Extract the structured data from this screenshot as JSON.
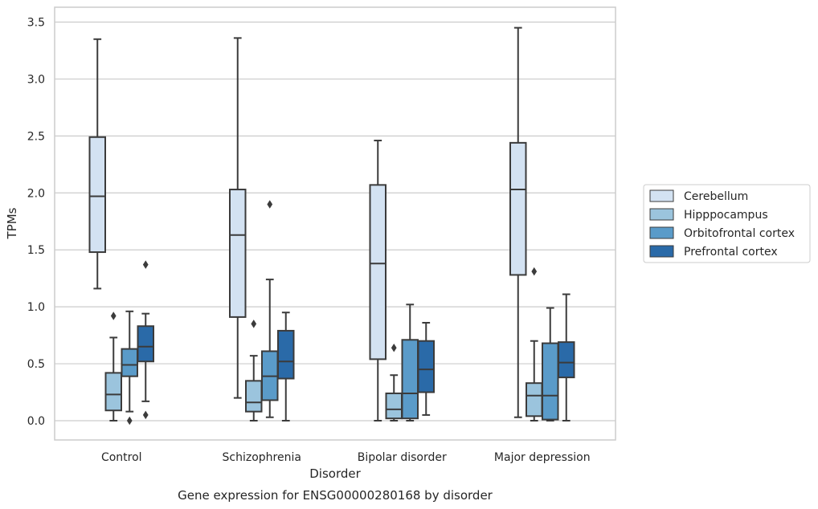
{
  "chart_data": {
    "type": "boxplot",
    "caption": "Gene expression for ENSG00000280168 by disorder",
    "xlabel": "Disorder",
    "ylabel": "TPMs",
    "ylim": [
      -0.17,
      3.62
    ],
    "yticks": [
      0.0,
      0.5,
      1.0,
      1.5,
      2.0,
      2.5,
      3.0,
      3.5
    ],
    "ytick_labels": [
      "0.0",
      "0.5",
      "1.0",
      "1.5",
      "2.0",
      "2.5",
      "3.0",
      "3.5"
    ],
    "grid": "horizontal",
    "legend_position": "right",
    "categories": [
      "Control",
      "Schizophrenia",
      "Bipolar disorder",
      "Major depression"
    ],
    "series": [
      {
        "name": "Cerebellum",
        "color": "#d3e2f2",
        "boxes": [
          {
            "whislo": 1.16,
            "q1": 1.48,
            "med": 1.97,
            "q3": 2.49,
            "whishi": 3.35,
            "fliers": []
          },
          {
            "whislo": 0.2,
            "q1": 0.91,
            "med": 1.63,
            "q3": 2.03,
            "whishi": 3.36,
            "fliers": []
          },
          {
            "whislo": 0.0,
            "q1": 0.54,
            "med": 1.38,
            "q3": 2.07,
            "whishi": 2.46,
            "fliers": []
          },
          {
            "whislo": 0.03,
            "q1": 1.28,
            "med": 2.03,
            "q3": 2.44,
            "whishi": 3.45,
            "fliers": []
          }
        ]
      },
      {
        "name": "Hipppocampus",
        "color": "#9bc4dd",
        "boxes": [
          {
            "whislo": 0.0,
            "q1": 0.09,
            "med": 0.23,
            "q3": 0.42,
            "whishi": 0.73,
            "fliers": [
              0.92
            ]
          },
          {
            "whislo": 0.0,
            "q1": 0.08,
            "med": 0.16,
            "q3": 0.35,
            "whishi": 0.57,
            "fliers": [
              0.85
            ]
          },
          {
            "whislo": 0.0,
            "q1": 0.02,
            "med": 0.1,
            "q3": 0.24,
            "whishi": 0.4,
            "fliers": [
              0.64
            ]
          },
          {
            "whislo": 0.0,
            "q1": 0.04,
            "med": 0.22,
            "q3": 0.33,
            "whishi": 0.7,
            "fliers": [
              1.31
            ]
          }
        ]
      },
      {
        "name": "Orbitofrontal cortex",
        "color": "#5a9bc9",
        "boxes": [
          {
            "whislo": 0.08,
            "q1": 0.39,
            "med": 0.49,
            "q3": 0.63,
            "whishi": 0.96,
            "fliers": [
              0.0
            ]
          },
          {
            "whislo": 0.03,
            "q1": 0.18,
            "med": 0.39,
            "q3": 0.61,
            "whishi": 1.24,
            "fliers": [
              1.9
            ]
          },
          {
            "whislo": 0.0,
            "q1": 0.02,
            "med": 0.24,
            "q3": 0.71,
            "whishi": 1.02,
            "fliers": []
          },
          {
            "whislo": 0.0,
            "q1": 0.01,
            "med": 0.22,
            "q3": 0.68,
            "whishi": 0.99,
            "fliers": []
          }
        ]
      },
      {
        "name": "Prefrontal cortex",
        "color": "#2a6aa8",
        "boxes": [
          {
            "whislo": 0.17,
            "q1": 0.52,
            "med": 0.65,
            "q3": 0.83,
            "whishi": 0.94,
            "fliers": [
              1.37,
              0.05
            ]
          },
          {
            "whislo": 0.0,
            "q1": 0.37,
            "med": 0.52,
            "q3": 0.79,
            "whishi": 0.95,
            "fliers": []
          },
          {
            "whislo": 0.05,
            "q1": 0.25,
            "med": 0.45,
            "q3": 0.7,
            "whishi": 0.86,
            "fliers": []
          },
          {
            "whislo": 0.0,
            "q1": 0.38,
            "med": 0.51,
            "q3": 0.69,
            "whishi": 1.11,
            "fliers": []
          }
        ]
      }
    ]
  }
}
